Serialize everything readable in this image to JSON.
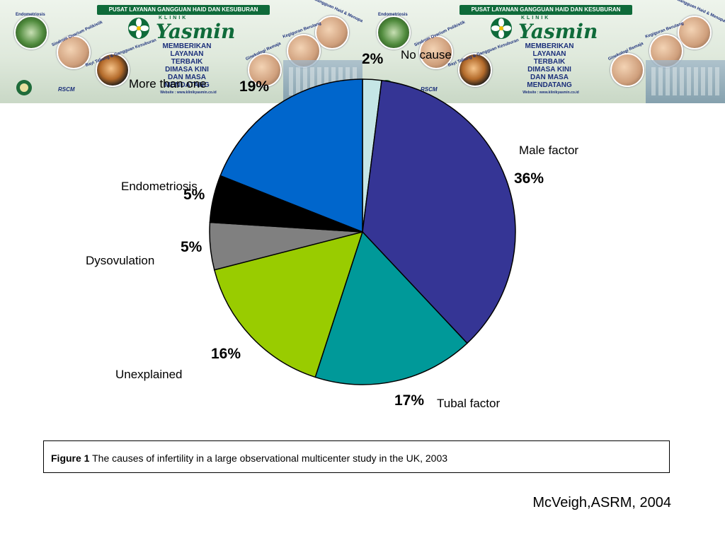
{
  "banner": {
    "ribbon": "PUSAT LAYANAN GANGGUAN HAID DAN KESUBURAN",
    "klinik": "KLINIK",
    "brand": "Yasmin",
    "slogan": [
      "MEMBERIKAN",
      "LAYANAN",
      "TERBAIK",
      "DIMASA KINI",
      "DAN MASA",
      "MENDATANG"
    ],
    "website": "Website : www.klinikyasmin.co.id",
    "topics": [
      "Endometriosis",
      "Sindrom Ovarium Polikistik",
      "Bayi Tabung & Gangguan Kesuburan",
      "Gangguan Haid & Menopause",
      "Kegiguran Berulang",
      "Ginekologi Remaja"
    ],
    "logo": "RSCM"
  },
  "chart_data": {
    "type": "pie",
    "slices": [
      {
        "label": "No cause",
        "value": 2,
        "display": "2%",
        "color": "#c5e6e6"
      },
      {
        "label": "Male factor",
        "value": 36,
        "display": "36%",
        "color": "#353595"
      },
      {
        "label": "Tubal factor",
        "value": 17,
        "display": "17%",
        "color": "#009999"
      },
      {
        "label": "Unexplained",
        "value": 16,
        "display": "16%",
        "color": "#99cc00"
      },
      {
        "label": "Dysovulation",
        "value": 5,
        "display": "5%",
        "color": "#808080"
      },
      {
        "label": "Endometriosis",
        "value": 5,
        "display": "5%",
        "color": "#000000"
      },
      {
        "label": "More than one",
        "value": 19,
        "display": "19%",
        "color": "#0066cc"
      }
    ]
  },
  "caption": {
    "figure_label": "Figure 1",
    "text": " The causes of infertility in a large observational multicenter study in the UK, 2003"
  },
  "source": "McVeigh,ASRM, 2004"
}
